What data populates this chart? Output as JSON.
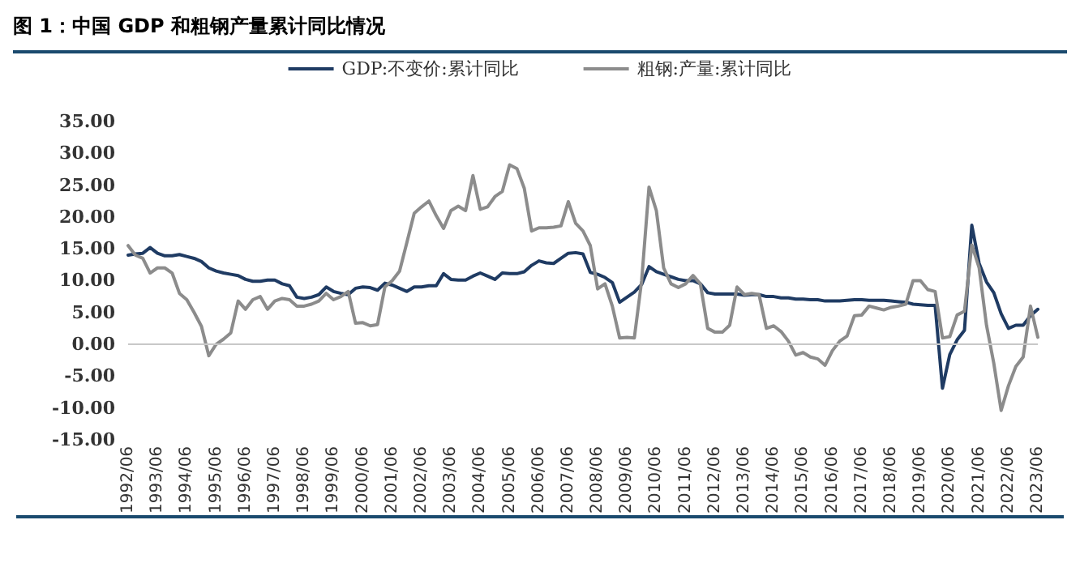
{
  "chart_data": {
    "type": "line",
    "title": "图 1：中国 GDP 和粗钢产量累计同比情况",
    "categories": [
      "1992/06",
      null,
      null,
      null,
      "1993/06",
      null,
      null,
      null,
      "1994/06",
      null,
      null,
      null,
      "1995/06",
      null,
      null,
      null,
      "1996/06",
      null,
      null,
      null,
      "1997/06",
      null,
      null,
      null,
      "1998/06",
      null,
      null,
      null,
      "1999/06",
      null,
      null,
      null,
      "2000/06",
      null,
      null,
      null,
      "2001/06",
      null,
      null,
      null,
      "2002/06",
      null,
      null,
      null,
      "2003/06",
      null,
      null,
      null,
      "2004/06",
      null,
      null,
      null,
      "2005/06",
      null,
      null,
      null,
      "2006/06",
      null,
      null,
      null,
      "2007/06",
      null,
      null,
      null,
      "2008/06",
      null,
      null,
      null,
      "2009/06",
      null,
      null,
      null,
      "2010/06",
      null,
      null,
      null,
      "2011/06",
      null,
      null,
      null,
      "2012/06",
      null,
      null,
      null,
      "2013/06",
      null,
      null,
      null,
      "2014/06",
      null,
      null,
      null,
      "2015/06",
      null,
      null,
      null,
      "2016/06",
      null,
      null,
      null,
      "2017/06",
      null,
      null,
      null,
      "2018/06",
      null,
      null,
      null,
      "2019/06",
      null,
      null,
      null,
      "2020/06",
      null,
      null,
      null,
      "2021/06",
      null,
      null,
      null,
      "2022/06",
      null,
      null,
      null,
      "2023/06"
    ],
    "series": [
      {
        "name": "GDP:不变价:累计同比",
        "color": "#1f3b63",
        "values": [
          14.0,
          14.2,
          14.3,
          15.2,
          14.3,
          13.9,
          13.9,
          14.1,
          13.8,
          13.5,
          13.0,
          12.0,
          11.5,
          11.2,
          11.0,
          10.8,
          10.2,
          9.9,
          9.9,
          10.1,
          10.1,
          9.5,
          9.2,
          7.4,
          7.2,
          7.4,
          7.8,
          9.0,
          8.3,
          8.0,
          7.8,
          8.8,
          9.0,
          8.9,
          8.5,
          9.6,
          9.3,
          8.8,
          8.3,
          9.0,
          9.0,
          9.2,
          9.2,
          11.1,
          10.2,
          10.1,
          10.1,
          10.7,
          11.2,
          10.7,
          10.2,
          11.2,
          11.1,
          11.1,
          11.4,
          12.4,
          13.1,
          12.8,
          12.7,
          13.5,
          14.3,
          14.4,
          14.2,
          11.3,
          11.0,
          10.5,
          9.7,
          6.6,
          7.4,
          8.2,
          9.4,
          12.2,
          11.4,
          11.0,
          10.6,
          10.2,
          10.0,
          10.0,
          9.5,
          8.1,
          7.9,
          7.9,
          7.9,
          7.9,
          7.7,
          7.8,
          7.8,
          7.5,
          7.5,
          7.3,
          7.3,
          7.1,
          7.1,
          7.0,
          7.0,
          6.8,
          6.8,
          6.8,
          6.9,
          7.0,
          7.0,
          6.9,
          6.9,
          6.9,
          6.8,
          6.7,
          6.6,
          6.3,
          6.2,
          6.1,
          6.1,
          -6.9,
          -1.6,
          0.7,
          2.2,
          18.7,
          12.7,
          9.8,
          8.1,
          4.8,
          2.5,
          3.0,
          3.0,
          4.5,
          5.5
        ]
      },
      {
        "name": "粗钢:产量:累计同比",
        "color": "#8c8c8c",
        "values": [
          15.5,
          14.0,
          13.5,
          11.2,
          12.0,
          12.0,
          11.2,
          8.0,
          7.0,
          5.0,
          2.8,
          -1.8,
          0.0,
          0.8,
          1.8,
          6.8,
          5.5,
          7.0,
          7.5,
          5.5,
          6.8,
          7.2,
          7.0,
          6.0,
          6.0,
          6.3,
          6.8,
          8.0,
          7.0,
          7.5,
          8.3,
          3.3,
          3.4,
          2.9,
          3.1,
          9.0,
          10.0,
          11.5,
          16.0,
          20.6,
          21.6,
          22.5,
          20.2,
          18.2,
          21.0,
          21.7,
          21.0,
          26.5,
          21.2,
          21.6,
          23.2,
          24.0,
          28.2,
          27.6,
          24.5,
          17.8,
          18.3,
          18.3,
          18.4,
          18.6,
          22.4,
          19.0,
          17.8,
          15.5,
          8.7,
          9.5,
          6.0,
          1.0,
          1.1,
          1.0,
          10.0,
          24.7,
          21.0,
          12.0,
          9.5,
          8.9,
          9.5,
          10.8,
          9.5,
          2.5,
          1.9,
          1.9,
          3.0,
          9.0,
          7.8,
          8.0,
          7.8,
          2.5,
          2.9,
          2.0,
          0.5,
          -1.7,
          -1.3,
          -2.0,
          -2.3,
          -3.3,
          -1.0,
          0.5,
          1.3,
          4.5,
          4.6,
          6.0,
          5.7,
          5.4,
          5.8,
          6.0,
          6.3,
          10.0,
          10.0,
          8.6,
          8.3,
          1.0,
          1.2,
          4.6,
          5.2,
          15.6,
          12.0,
          3.0,
          -3.0,
          -10.4,
          -6.5,
          -3.5,
          -2.0,
          6.0,
          1.1
        ]
      }
    ],
    "ylim": [
      -15,
      35
    ],
    "yticks": [
      {
        "value": -15,
        "label": "-15.00"
      },
      {
        "value": -10,
        "label": "-10.00"
      },
      {
        "value": -5,
        "label": "-5.00"
      },
      {
        "value": 0,
        "label": "0.00"
      },
      {
        "value": 5,
        "label": "5.00"
      },
      {
        "value": 10,
        "label": "10.00"
      },
      {
        "value": 15,
        "label": "15.00"
      },
      {
        "value": 20,
        "label": "20.00"
      },
      {
        "value": 25,
        "label": "25.00"
      },
      {
        "value": 30,
        "label": "30.00"
      },
      {
        "value": 35,
        "label": "35.00"
      }
    ],
    "ref_lines": [
      {
        "axis": "y",
        "value": 0,
        "color": "#c8c8c8"
      }
    ],
    "grid": false,
    "legend": "top",
    "marker": "none",
    "line_style": "solid"
  }
}
